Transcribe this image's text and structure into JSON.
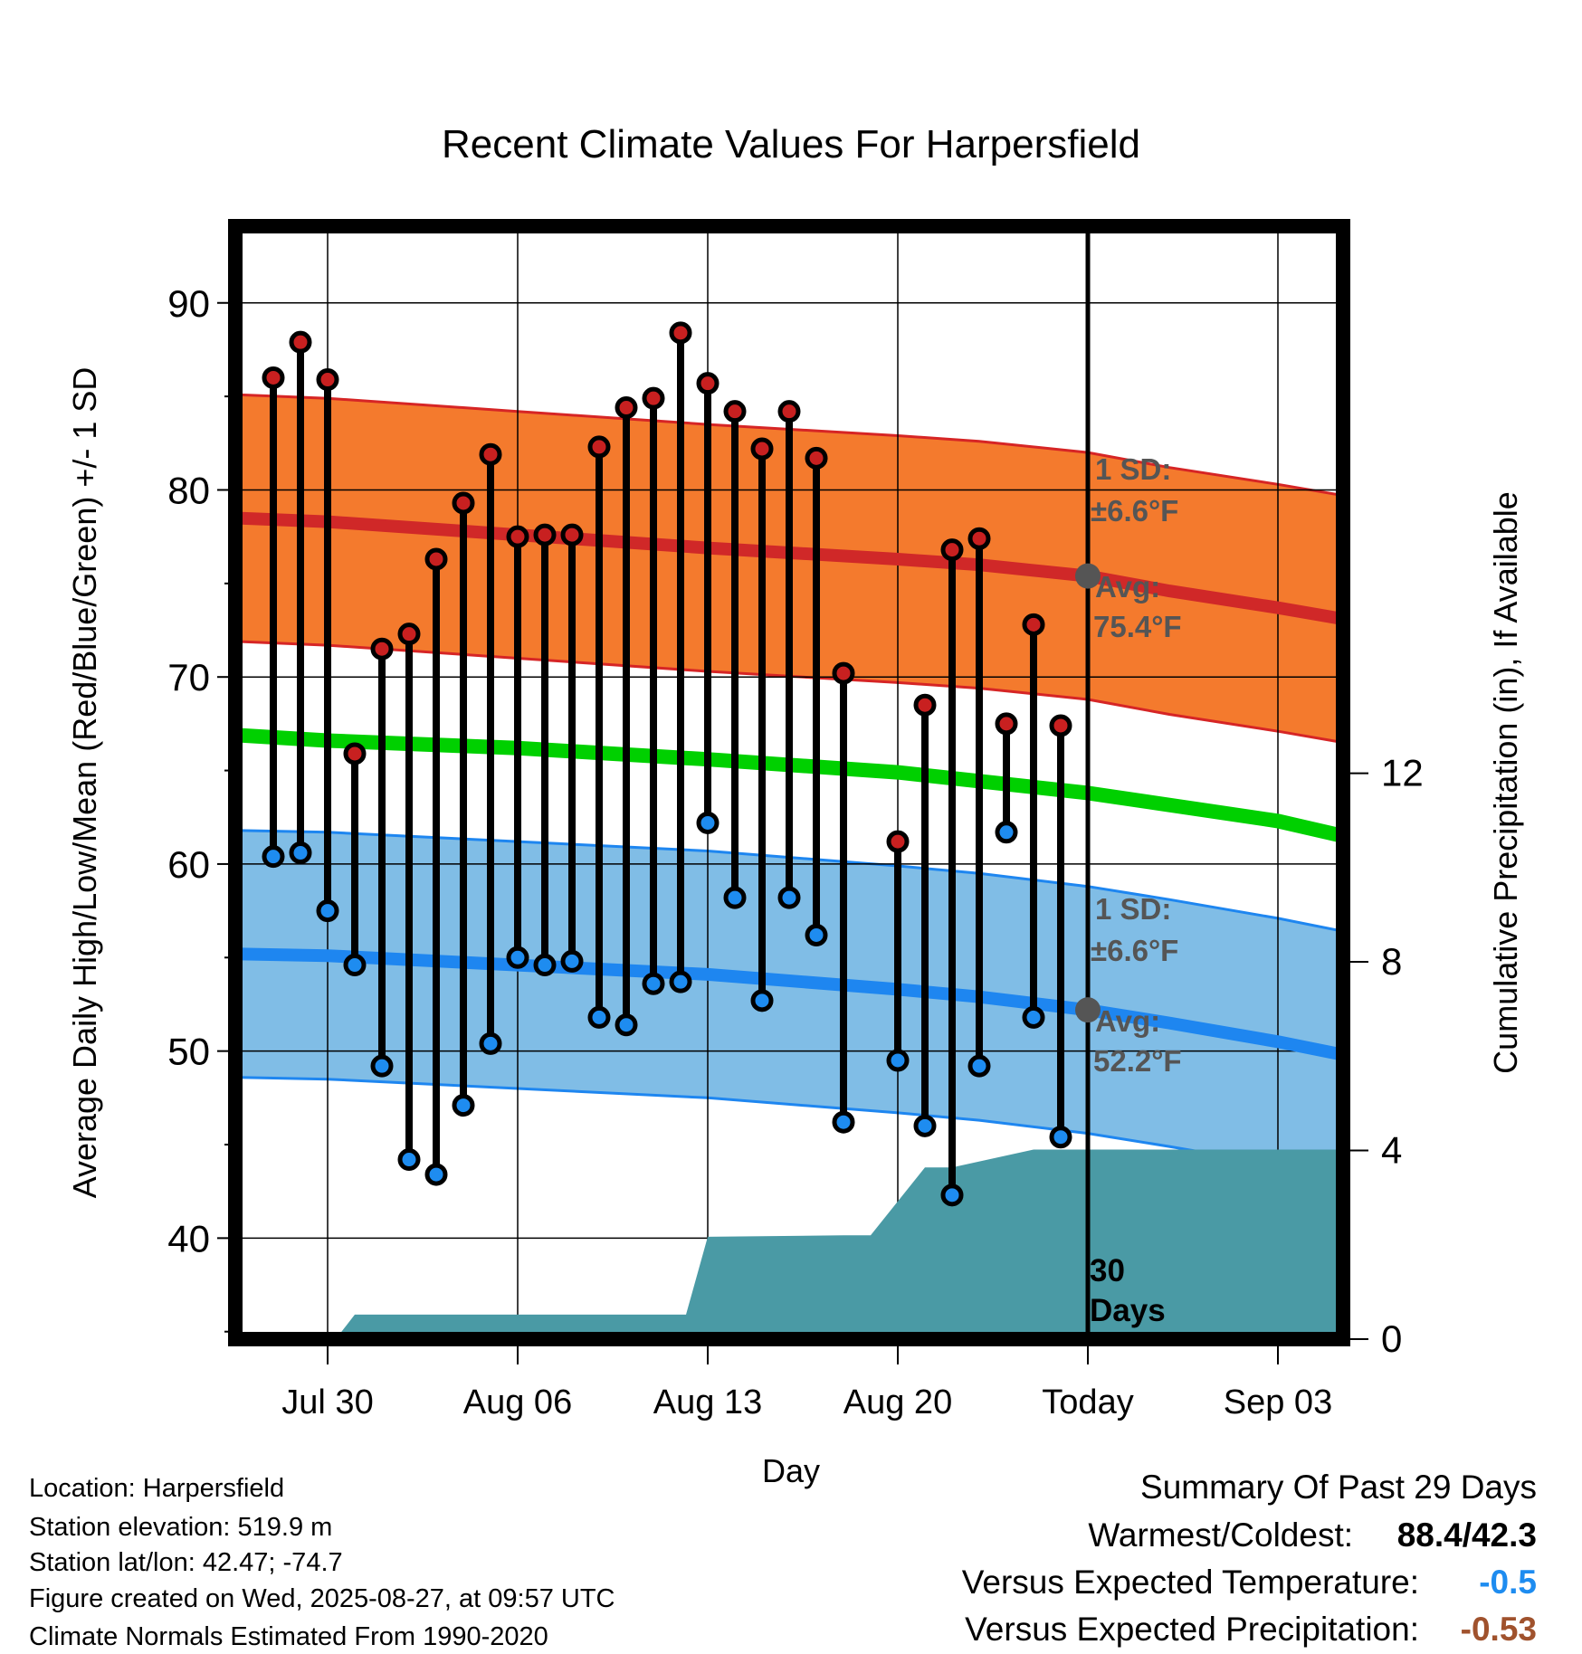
{
  "chart_data": {
    "type": "line",
    "title": "Recent Climate Values For Harpersfield",
    "xlabel": "Day",
    "ylabel": "Average Daily High/Low/Mean (Red/Blue/Green) +/- 1 SD",
    "y2label": "Cumulative Precipitation (in), If Available",
    "ylim": [
      34.6,
      94.1
    ],
    "y2lim": [
      0,
      23.6
    ],
    "xlim": [
      -3.4,
      37.4
    ],
    "yticks": [
      40,
      50,
      60,
      70,
      80,
      90
    ],
    "y2ticks": [
      0,
      4,
      8,
      12
    ],
    "xticks": [
      {
        "x": 0,
        "label": "Jul 30"
      },
      {
        "x": 7,
        "label": "Aug 06"
      },
      {
        "x": 14,
        "label": "Aug 13"
      },
      {
        "x": 21,
        "label": "Aug 20"
      },
      {
        "x": 28,
        "label": "Today"
      },
      {
        "x": 35,
        "label": "Sep 03"
      }
    ],
    "today_x": 28,
    "days": [
      -2,
      -1,
      0,
      1,
      2,
      3,
      4,
      5,
      6,
      7,
      8,
      9,
      10,
      11,
      12,
      13,
      14,
      15,
      16,
      17,
      18,
      19,
      21,
      22,
      23,
      24,
      25,
      26,
      27
    ],
    "highs": [
      86.0,
      87.9,
      85.9,
      65.9,
      71.5,
      72.3,
      76.3,
      79.3,
      81.9,
      77.5,
      77.6,
      77.6,
      82.3,
      84.4,
      84.9,
      88.4,
      85.7,
      84.2,
      82.2,
      84.2,
      81.7,
      70.2,
      61.2,
      68.5,
      76.8,
      77.4,
      67.5,
      72.8,
      67.4
    ],
    "lows": [
      60.4,
      60.6,
      57.5,
      54.6,
      49.2,
      44.2,
      43.4,
      47.1,
      50.4,
      55.0,
      54.6,
      54.8,
      51.8,
      51.4,
      53.6,
      53.7,
      62.2,
      58.2,
      52.7,
      58.2,
      56.2,
      46.2,
      49.5,
      46.0,
      42.3,
      49.2,
      61.7,
      51.8,
      45.4
    ],
    "normal_high": {
      "x": [
        -3.4,
        0,
        7,
        14,
        21,
        24,
        28,
        31,
        35,
        37.4
      ],
      "mean": [
        78.5,
        78.3,
        77.6,
        76.9,
        76.3,
        76.0,
        75.4,
        74.6,
        73.7,
        73.1
      ],
      "sd": 6.6,
      "sd_label": "1 SD:",
      "sd_value": "±6.6°F",
      "avg_label": "Avg:",
      "avg_value": "75.4°F"
    },
    "normal_low": {
      "x": [
        -3.4,
        0,
        7,
        14,
        21,
        24,
        28,
        31,
        35,
        37.4
      ],
      "mean": [
        55.2,
        55.1,
        54.6,
        54.1,
        53.3,
        52.9,
        52.2,
        51.5,
        50.5,
        49.8
      ],
      "sd": 6.6,
      "sd_label": "1 SD:",
      "sd_value": "±6.6°F",
      "avg_label": "Avg:",
      "avg_value": "52.2°F"
    },
    "normal_mean": {
      "x": [
        -3.4,
        0,
        7,
        14,
        21,
        28,
        35,
        37.4
      ],
      "values": [
        66.9,
        66.6,
        66.2,
        65.6,
        64.9,
        63.8,
        62.3,
        61.5
      ]
    },
    "precip_cumulative": {
      "x": [
        0.3,
        1.0,
        13.2,
        14.0,
        19.0,
        20.0,
        22.0,
        23.0,
        26.0,
        37.4
      ],
      "values": [
        0,
        0.52,
        0.52,
        2.17,
        2.2,
        2.2,
        3.64,
        3.64,
        4.02,
        4.02
      ]
    },
    "precip_label": "30 Days",
    "colors": {
      "high_band": "#f47a2d",
      "high_band_edge": "#d62525",
      "high_line": "#d02828",
      "low_band": "#80bde6",
      "low_band_edge": "#1e86f0",
      "low_line": "#1e86f0",
      "mean_line": "#00d000",
      "precip": "#4a9aa5",
      "high_marker": "#c82020",
      "low_marker": "#1e8cf0",
      "annotation": "#555555"
    }
  },
  "footer": {
    "location": "Location: Harpersfield",
    "elevation": "Station elevation: 519.9 m",
    "latlon": "Station lat/lon: 42.47; -74.7",
    "created": "Figure created on Wed, 2025-08-27, at 09:57 UTC",
    "normals": "Climate Normals Estimated From 1990-2020"
  },
  "summary": {
    "title": "Summary Of Past 29 Days",
    "warm_cold_label": "Warmest/Coldest:",
    "warm_cold_value": "88.4/42.3",
    "temp_label": "Versus Expected Temperature:",
    "temp_value": "-0.5",
    "temp_color": "#1e8cf0",
    "precip_label": "Versus Expected Precipitation:",
    "precip_value": "-0.53",
    "precip_color": "#a0522d"
  }
}
